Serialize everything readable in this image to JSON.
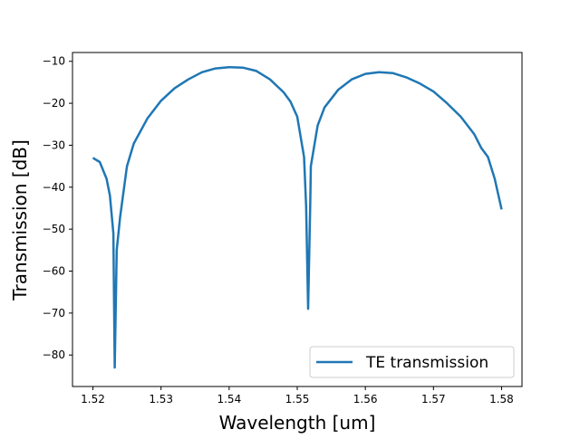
{
  "chart_data": {
    "type": "line",
    "title": "",
    "xlabel": "Wavelength [um]",
    "ylabel": "Transmission [dB]",
    "xlim": [
      1.517,
      1.583
    ],
    "ylim": [
      -87.5,
      -7.9
    ],
    "xticks": [
      1.52,
      1.53,
      1.54,
      1.55,
      1.56,
      1.57,
      1.58
    ],
    "xtick_labels": [
      "1.52",
      "1.53",
      "1.54",
      "1.55",
      "1.56",
      "1.57",
      "1.58"
    ],
    "yticks": [
      -80,
      -70,
      -60,
      -50,
      -40,
      -30,
      -20,
      -10
    ],
    "ytick_labels": [
      "−80",
      "−70",
      "−60",
      "−50",
      "−40",
      "−30",
      "−20",
      "−10"
    ],
    "grid": false,
    "legend": {
      "placement": "lower-right",
      "entries": [
        "TE transmission"
      ]
    },
    "series": [
      {
        "name": "TE transmission",
        "color": "#1f77b4",
        "x": [
          1.52,
          1.521,
          1.522,
          1.5225,
          1.523,
          1.5232,
          1.5235,
          1.524,
          1.525,
          1.526,
          1.528,
          1.53,
          1.532,
          1.534,
          1.536,
          1.538,
          1.54,
          1.542,
          1.544,
          1.546,
          1.548,
          1.549,
          1.55,
          1.551,
          1.5513,
          1.5516,
          1.5519,
          1.552,
          1.553,
          1.554,
          1.556,
          1.558,
          1.56,
          1.562,
          1.564,
          1.566,
          1.568,
          1.57,
          1.572,
          1.574,
          1.576,
          1.577,
          1.578,
          1.579,
          1.58
        ],
        "y": [
          -33,
          -34,
          -38,
          -42,
          -51,
          -83,
          -55,
          -47,
          -35,
          -29.6,
          -23.6,
          -19.4,
          -16.4,
          -14.3,
          -12.6,
          -11.7,
          -11.4,
          -11.5,
          -12.3,
          -14.3,
          -17.4,
          -19.6,
          -23.2,
          -32.8,
          -44.5,
          -69,
          -44.5,
          -35,
          -25.3,
          -21,
          -16.8,
          -14.3,
          -13,
          -12.6,
          -12.8,
          -13.8,
          -15.3,
          -17.2,
          -20,
          -23.2,
          -27.4,
          -30.6,
          -32.8,
          -38,
          -45.3
        ]
      }
    ]
  }
}
